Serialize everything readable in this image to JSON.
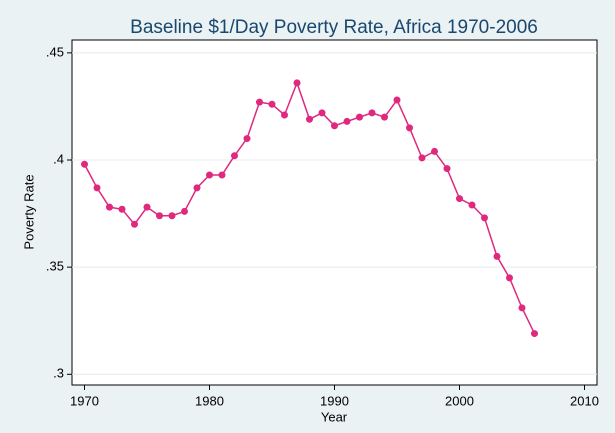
{
  "chart_data": {
    "type": "line",
    "title": "Baseline $1/Day Poverty Rate, Africa 1970-2006",
    "x_label": "Year",
    "y_label": "Poverty Rate",
    "x": [
      1970,
      1971,
      1972,
      1973,
      1974,
      1975,
      1976,
      1977,
      1978,
      1979,
      1980,
      1981,
      1982,
      1983,
      1984,
      1985,
      1986,
      1987,
      1988,
      1989,
      1990,
      1991,
      1992,
      1993,
      1994,
      1995,
      1996,
      1997,
      1998,
      1999,
      2000,
      2001,
      2002,
      2003,
      2004,
      2005,
      2006
    ],
    "series": [
      {
        "name": "Poverty Rate",
        "color": "#e0287f",
        "values": [
          0.398,
          0.387,
          0.378,
          0.377,
          0.37,
          0.378,
          0.374,
          0.374,
          0.376,
          0.387,
          0.393,
          0.393,
          0.402,
          0.41,
          0.427,
          0.426,
          0.421,
          0.436,
          0.419,
          0.422,
          0.416,
          0.418,
          0.42,
          0.422,
          0.42,
          0.428,
          0.415,
          0.401,
          0.404,
          0.396,
          0.382,
          0.379,
          0.373,
          0.355,
          0.345,
          0.331,
          0.319
        ]
      }
    ],
    "xlim": [
      1969,
      2011
    ],
    "xticks": [
      1970,
      1980,
      1990,
      2000,
      2010
    ],
    "ylim": [
      0.295,
      0.456
    ],
    "yticks": [
      {
        "value": 0.3,
        "label": ".3"
      },
      {
        "value": 0.35,
        "label": ".35"
      },
      {
        "value": 0.4,
        "label": ".4"
      },
      {
        "value": 0.45,
        "label": ".45"
      }
    ],
    "grid": true
  }
}
